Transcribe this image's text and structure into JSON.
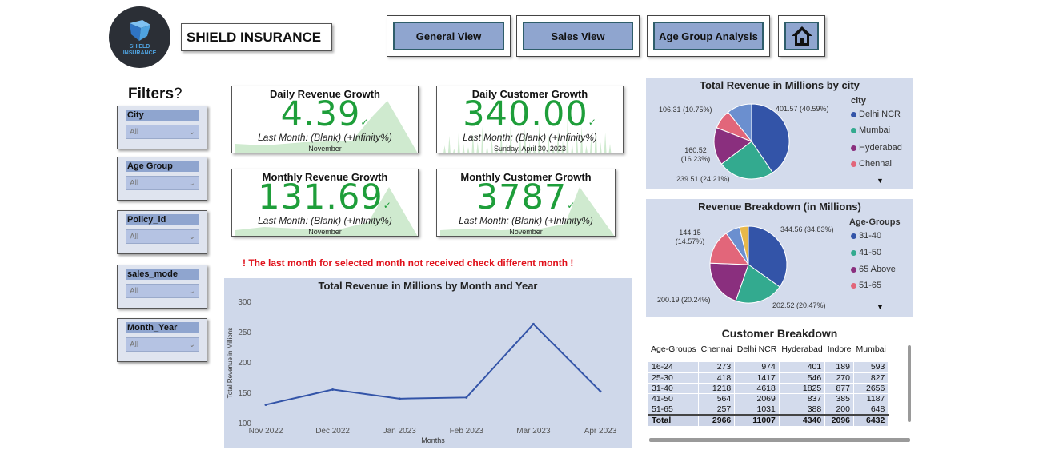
{
  "brand": {
    "logo_text": "SHIELD INSURANCE",
    "title": "SHIELD INSURANCE"
  },
  "nav": {
    "general": "General View",
    "sales": "Sales View",
    "age": "Age Group Analysis",
    "home_icon": "home-icon"
  },
  "filters": {
    "title": "Filters",
    "help_icon": "question-mark-icon",
    "items": [
      {
        "label": "City",
        "value": "All"
      },
      {
        "label": "Age Group",
        "value": "All"
      },
      {
        "label": "Policy_id",
        "value": "All"
      },
      {
        "label": "sales_mode",
        "value": "All"
      },
      {
        "label": "Month_Year",
        "value": "All"
      }
    ]
  },
  "kpis": {
    "daily_revenue": {
      "title": "Daily Revenue Growth",
      "value": "4.39",
      "sub": "Last Month: (Blank) (+Infinity%)",
      "date": "November"
    },
    "daily_customer": {
      "title": "Daily Customer Growth",
      "value": "340.00",
      "sub": "Last Month: (Blank) (+Infinity%)",
      "date": "Sunday, April 30, 2023"
    },
    "monthly_revenue": {
      "title": "Monthly Revenue Growth",
      "value": "131.69",
      "sub": "Last Month: (Blank) (+Infinity%)",
      "date": "November"
    },
    "monthly_customer": {
      "title": "Monthly Customer Growth",
      "value": "3787",
      "sub": "Last Month: (Blank) (+Infinity%)",
      "date": "November"
    }
  },
  "warning": "! The last month for selected month not received check different month !",
  "colors": {
    "accent": "#3354a8",
    "kpi_green": "#1e9e3a",
    "warning": "#e0101a",
    "panel": "#d3dbec"
  },
  "chart_data": [
    {
      "type": "line",
      "title": "Total Revenue in Millions by Month and Year",
      "xlabel": "Months",
      "ylabel": "Total Revenue in Millions",
      "x": [
        "Nov 2022",
        "Dec 2022",
        "Jan 2023",
        "Feb 2023",
        "Mar 2023",
        "Apr 2023"
      ],
      "values": [
        131,
        156,
        141,
        143,
        264,
        153
      ],
      "yticks": [
        100,
        150,
        200,
        250,
        300
      ],
      "ylim": [
        100,
        300
      ],
      "grid": false
    },
    {
      "type": "pie",
      "title": "Total Revenue in Millions by city",
      "legend_title": "city",
      "legend": [
        "Delhi NCR",
        "Mumbai",
        "Hyderabad",
        "Chennai"
      ],
      "slices": [
        {
          "name": "Delhi NCR",
          "value": 401.57,
          "label": "401.57 (40.59%)",
          "color": "#3354a8"
        },
        {
          "name": "Mumbai",
          "value": 239.51,
          "label": "239.51 (24.21%)",
          "color": "#33aa8f"
        },
        {
          "name": "Hyderabad",
          "value": 160.52,
          "label": "160.52 (16.23%)",
          "color": "#8a2f7e"
        },
        {
          "name": "Chennai",
          "value": 82.02,
          "label": "",
          "color": "#e2667a"
        },
        {
          "name": "",
          "value": 106.31,
          "label": "106.31 (10.75%)",
          "color": "#6b8fcf"
        }
      ]
    },
    {
      "type": "pie",
      "title": "Revenue Breakdown (in Millions)",
      "legend_title": "Age-Groups",
      "legend": [
        "31-40",
        "41-50",
        "65 Above",
        "51-65"
      ],
      "slices": [
        {
          "name": "31-40",
          "value": 344.56,
          "label": "344.56 (34.83%)",
          "color": "#3354a8"
        },
        {
          "name": "41-50",
          "value": 202.52,
          "label": "202.52 (20.47%)",
          "color": "#33aa8f"
        },
        {
          "name": "65 Above",
          "value": 200.19,
          "label": "200.19 (20.24%)",
          "color": "#8a2f7e"
        },
        {
          "name": "51-65",
          "value": 144.15,
          "label": "144.15 (14.57%)",
          "color": "#e2667a"
        },
        {
          "name": "",
          "value": 60,
          "label": "",
          "color": "#6b8fcf"
        },
        {
          "name": "",
          "value": 37,
          "label": "",
          "color": "#e8b84a"
        }
      ]
    }
  ],
  "table": {
    "title": "Customer Breakdown",
    "headers": [
      "Age-Groups",
      "Chennai",
      "Delhi NCR",
      "Hyderabad",
      "Indore",
      "Mumbai"
    ],
    "rows": [
      [
        "16-24",
        "273",
        "974",
        "401",
        "189",
        "593"
      ],
      [
        "25-30",
        "418",
        "1417",
        "546",
        "270",
        "827"
      ],
      [
        "31-40",
        "1218",
        "4618",
        "1825",
        "877",
        "2656"
      ],
      [
        "41-50",
        "564",
        "2069",
        "837",
        "385",
        "1187"
      ],
      [
        "51-65",
        "257",
        "1031",
        "388",
        "200",
        "648"
      ]
    ],
    "total": [
      "Total",
      "2966",
      "11007",
      "4340",
      "2096",
      "6432"
    ]
  }
}
